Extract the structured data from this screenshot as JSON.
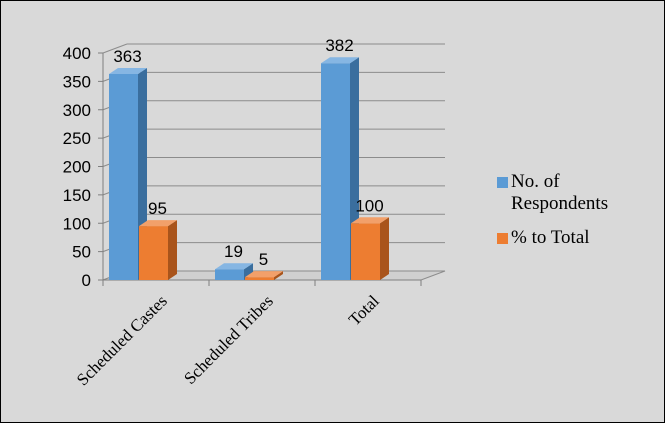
{
  "chart_data": {
    "type": "bar",
    "title": "",
    "xlabel": "",
    "ylabel": "",
    "categories": [
      "Scheduled Castes",
      "Scheduled Tribes",
      "Total"
    ],
    "series": [
      {
        "name": "No. of Respondents",
        "values": [
          363,
          19,
          382
        ],
        "color": "#5b9bd5",
        "dark": "#3a6e9e",
        "light": "#86b6e3"
      },
      {
        "name": "% to Total",
        "values": [
          95,
          5,
          100
        ],
        "color": "#ed7d31",
        "dark": "#a9541b",
        "light": "#f2a06a"
      }
    ],
    "ylim": [
      0,
      400
    ],
    "yticks": [
      "0",
      "50",
      "100",
      "150",
      "200",
      "250",
      "300",
      "350",
      "400"
    ],
    "data_labels": [
      [
        "363",
        "95"
      ],
      [
        "19",
        "5"
      ],
      [
        "382",
        "100"
      ]
    ],
    "grid": true,
    "legend_position": "right",
    "background": "#d9d9d9"
  }
}
